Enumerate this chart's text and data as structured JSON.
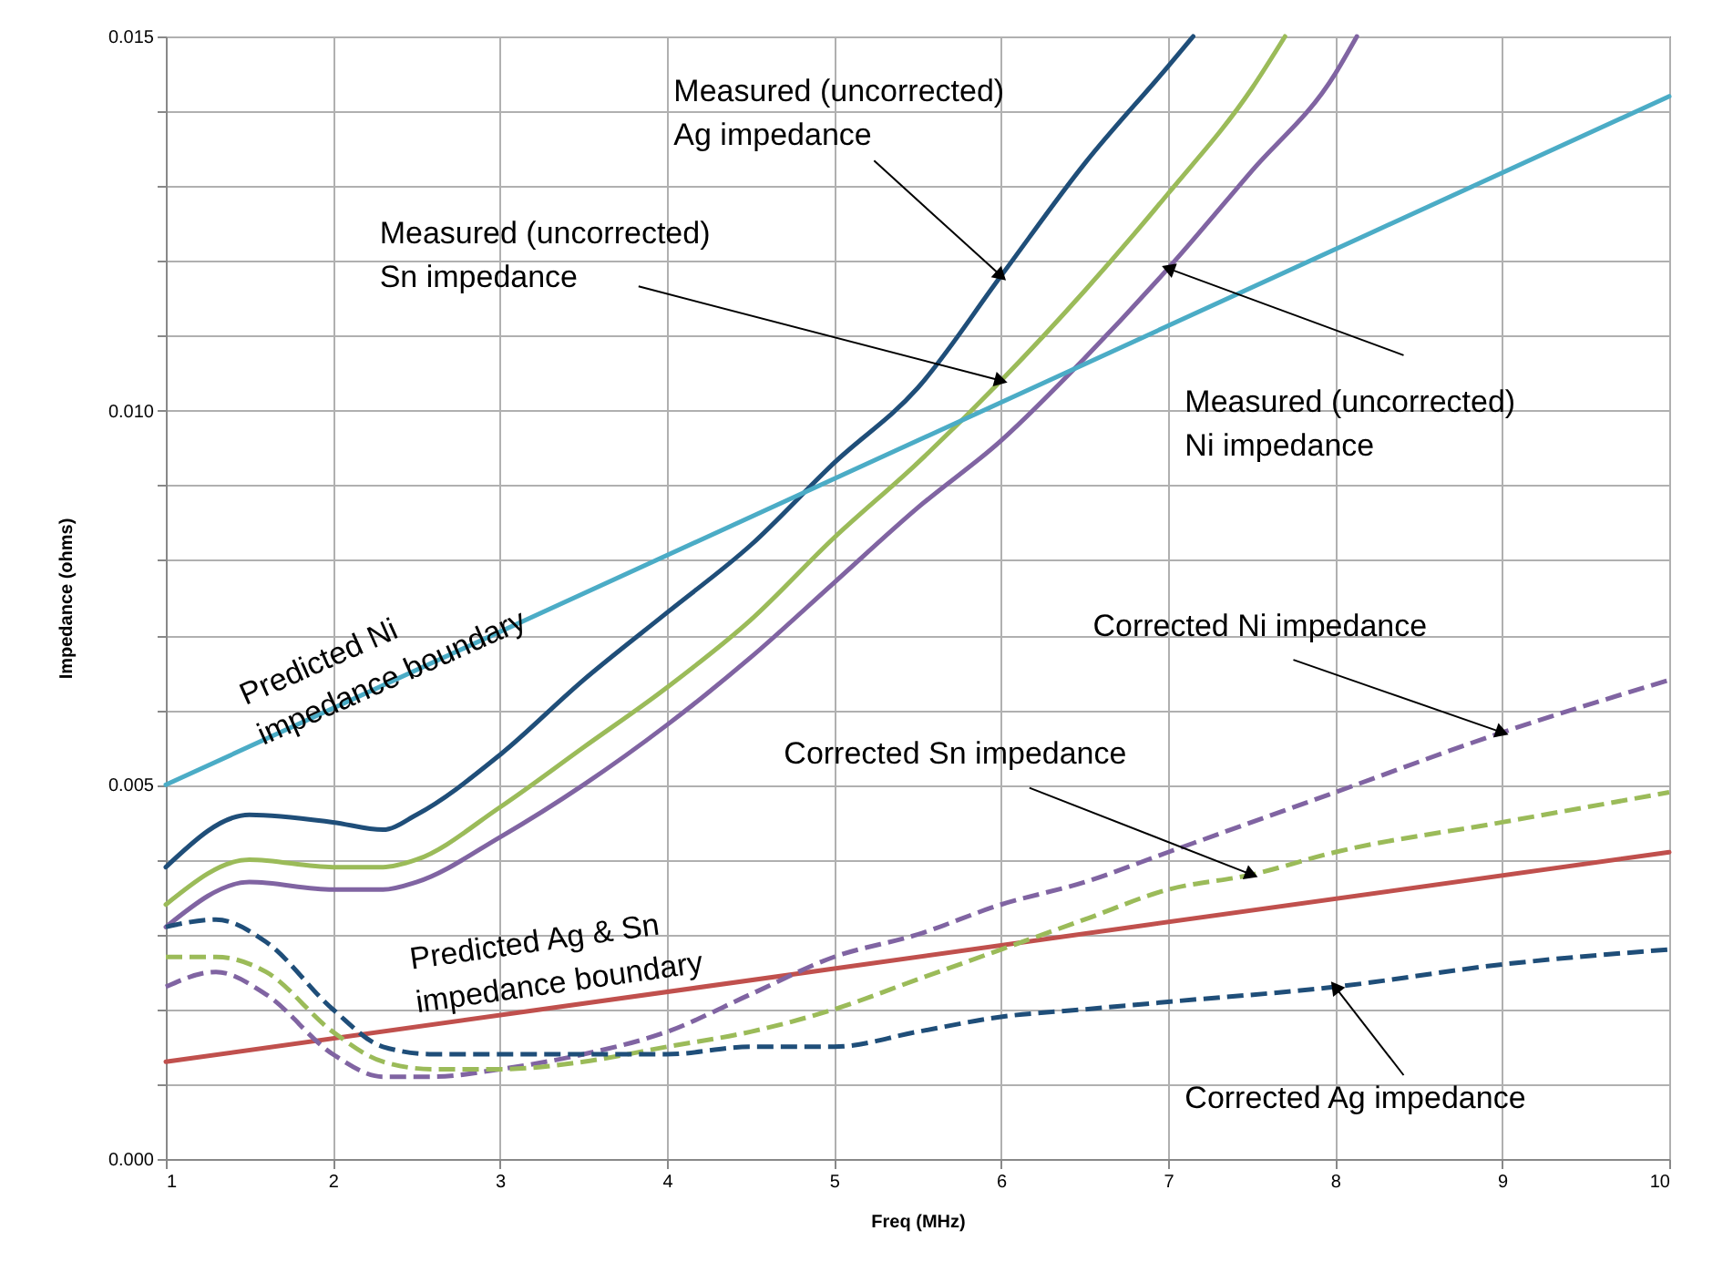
{
  "chart_data": {
    "type": "line",
    "xlabel": "Freq (MHz)",
    "ylabel": "Impedance (ohms)",
    "xlim": [
      1,
      10
    ],
    "ylim": [
      0,
      0.015
    ],
    "xticks": [
      1,
      2,
      3,
      4,
      5,
      6,
      7,
      8,
      9,
      10
    ],
    "yticks": [
      {
        "value": 0,
        "label": "0.000"
      },
      {
        "value": 0.001,
        "label": null
      },
      {
        "value": 0.002,
        "label": null
      },
      {
        "value": 0.003,
        "label": null
      },
      {
        "value": 0.004,
        "label": null
      },
      {
        "value": 0.005,
        "label": "0.005"
      },
      {
        "value": 0.006,
        "label": null
      },
      {
        "value": 0.007,
        "label": null
      },
      {
        "value": 0.008,
        "label": null
      },
      {
        "value": 0.009,
        "label": null
      },
      {
        "value": 0.01,
        "label": "0.010"
      },
      {
        "value": 0.011,
        "label": null
      },
      {
        "value": 0.012,
        "label": null
      },
      {
        "value": 0.013,
        "label": null
      },
      {
        "value": 0.014,
        "label": null
      },
      {
        "value": 0.015,
        "label": "0.015"
      }
    ],
    "grid": true,
    "series": [
      {
        "name": "Measured (uncorrected) Ag impedance",
        "color": "#1f4e79",
        "line_style": "solid",
        "x": [
          1,
          1.5,
          2,
          2.3,
          2.5,
          3,
          3.5,
          4,
          4.5,
          5,
          5.5,
          6,
          6.5,
          7,
          7.15
        ],
        "values": [
          0.0039,
          0.0046,
          0.0045,
          0.0044,
          0.0046,
          0.0054,
          0.0064,
          0.0073,
          0.0082,
          0.0093,
          0.0103,
          0.0118,
          0.0133,
          0.0146,
          0.015
        ]
      },
      {
        "name": "Measured (uncorrected) Sn impedance",
        "color": "#9bbb59",
        "line_style": "solid",
        "x": [
          1,
          1.5,
          2,
          2.3,
          2.5,
          3,
          3.5,
          4,
          4.5,
          5,
          5.5,
          6,
          6.5,
          7,
          7.5,
          7.7
        ],
        "values": [
          0.0034,
          0.004,
          0.0039,
          0.0039,
          0.004,
          0.0047,
          0.0055,
          0.0063,
          0.0072,
          0.0083,
          0.0093,
          0.0104,
          0.0116,
          0.0129,
          0.0143,
          0.015
        ]
      },
      {
        "name": "Measured (uncorrected) Ni impedance",
        "color": "#8064a2",
        "line_style": "solid",
        "x": [
          1,
          1.5,
          2,
          2.3,
          2.5,
          3,
          3.5,
          4,
          4.5,
          5,
          5.5,
          6,
          6.5,
          7,
          7.5,
          8,
          8.13
        ],
        "values": [
          0.0031,
          0.0037,
          0.0036,
          0.0036,
          0.0037,
          0.0043,
          0.005,
          0.0058,
          0.0067,
          0.0077,
          0.0087,
          0.0096,
          0.0107,
          0.0119,
          0.0132,
          0.0145,
          0.015
        ]
      },
      {
        "name": "Predicted Ni impedance boundary",
        "color": "#4bacc6",
        "line_style": "solid",
        "x": [
          1,
          10
        ],
        "values": [
          0.005,
          0.0142
        ]
      },
      {
        "name": "Predicted Ag & Sn impedance boundary",
        "color": "#c0504d",
        "line_style": "solid",
        "x": [
          1,
          10
        ],
        "values": [
          0.0013,
          0.0041
        ]
      },
      {
        "name": "Corrected Ni impedance",
        "color": "#8064a2",
        "line_style": "dashed",
        "x": [
          1,
          1.3,
          1.6,
          2,
          2.3,
          2.6,
          3,
          3.5,
          4,
          4.5,
          5,
          5.5,
          6,
          6.5,
          7,
          7.5,
          8,
          9,
          10
        ],
        "values": [
          0.0023,
          0.0025,
          0.0022,
          0.0014,
          0.0011,
          0.0011,
          0.0012,
          0.0014,
          0.0017,
          0.0022,
          0.0027,
          0.003,
          0.0034,
          0.0037,
          0.0041,
          0.0045,
          0.0049,
          0.0057,
          0.0064
        ]
      },
      {
        "name": "Corrected Sn impedance",
        "color": "#9bbb59",
        "line_style": "dashed",
        "x": [
          1,
          1.3,
          1.6,
          2,
          2.3,
          2.6,
          3,
          3.5,
          4,
          4.5,
          5,
          5.5,
          6,
          6.5,
          7,
          7.5,
          8,
          9,
          10
        ],
        "values": [
          0.0027,
          0.0027,
          0.0025,
          0.0017,
          0.0013,
          0.0012,
          0.0012,
          0.0013,
          0.0015,
          0.0017,
          0.002,
          0.0024,
          0.0028,
          0.0032,
          0.0036,
          0.0038,
          0.0041,
          0.0045,
          0.0049
        ]
      },
      {
        "name": "Corrected Ag impedance",
        "color": "#1f4e79",
        "line_style": "dashed",
        "x": [
          1,
          1.3,
          1.6,
          2,
          2.3,
          2.6,
          3,
          3.5,
          4,
          4.5,
          5,
          5.5,
          6,
          6.5,
          7,
          8,
          9,
          10
        ],
        "values": [
          0.0031,
          0.0032,
          0.0029,
          0.002,
          0.0015,
          0.0014,
          0.0014,
          0.0014,
          0.0014,
          0.0015,
          0.0015,
          0.0017,
          0.0019,
          0.002,
          0.0021,
          0.0023,
          0.0026,
          0.0028
        ]
      }
    ]
  }
}
